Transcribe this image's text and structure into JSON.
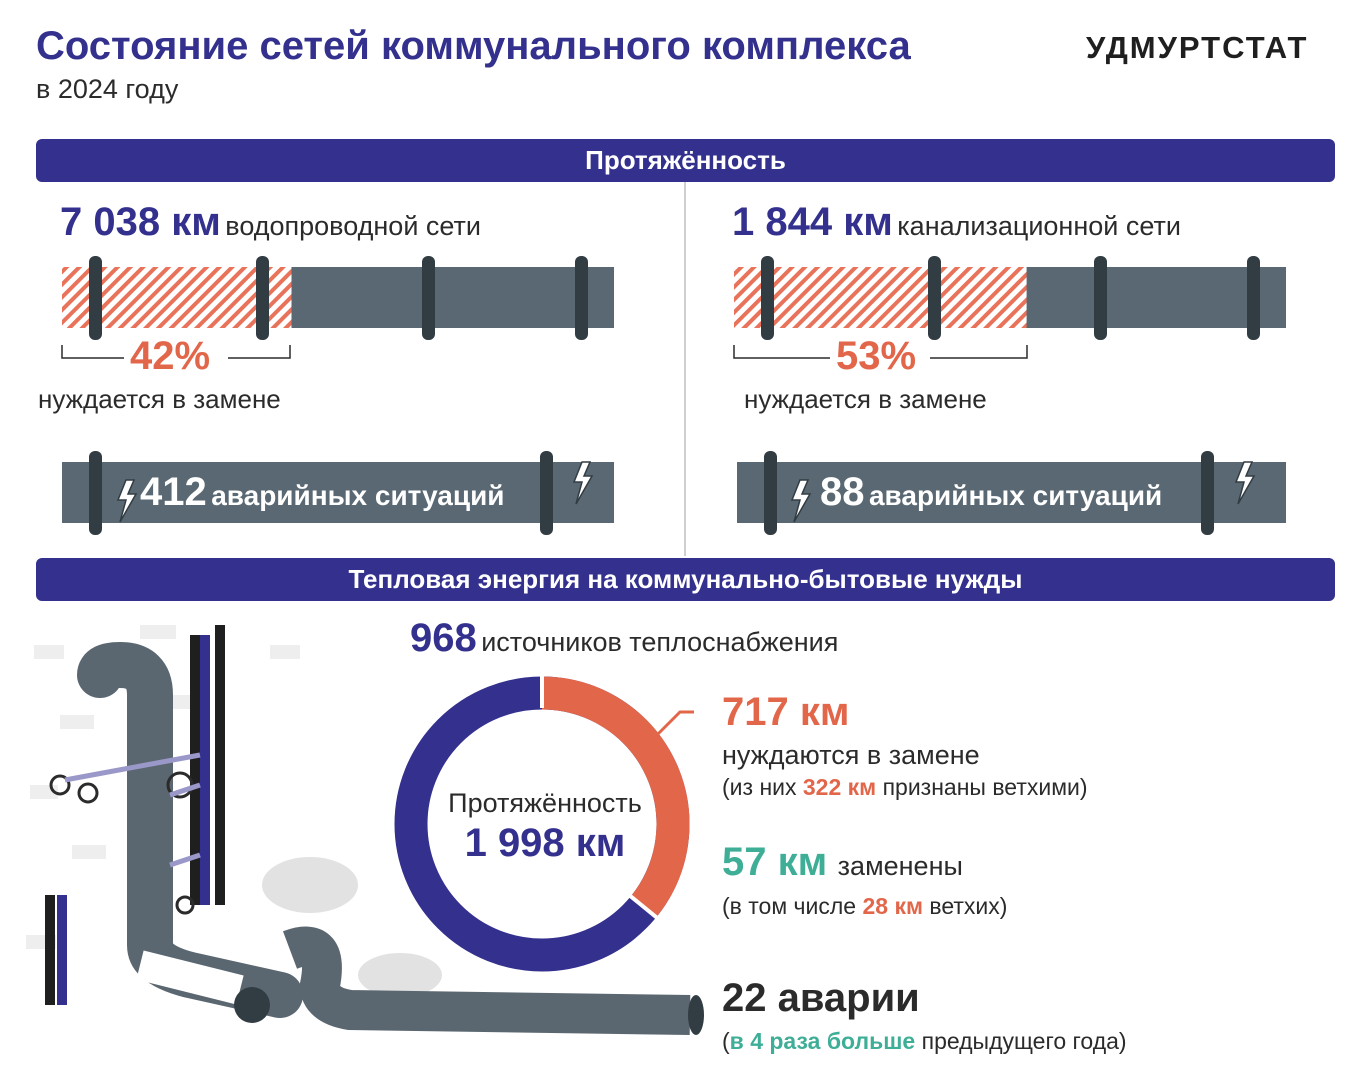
{
  "header": {
    "title": "Состояние сетей коммунального комплекса",
    "subtitle": "в 2024 году",
    "brand": "УДМУРТСТАТ"
  },
  "length_section": {
    "heading": "Протяжённость",
    "water": {
      "value": "7 038 км",
      "label": "водопроводной сети",
      "replace_percent": "42%",
      "replace_fraction": 0.42,
      "replace_label": "нуждается в замене",
      "accidents_value": "412",
      "accidents_label": "аварийных ситуаций"
    },
    "sewer": {
      "value": "1 844 км",
      "label": "канализационной сети",
      "replace_percent": "53%",
      "replace_fraction": 0.53,
      "replace_label": "нуждается в замене",
      "accidents_value": "88",
      "accidents_label": "аварийных ситуаций"
    }
  },
  "heat_section": {
    "heading": "Тепловая энергия на коммунально-бытовые нужды",
    "sources_value": "968",
    "sources_label": "источников теплоснабжения",
    "donut": {
      "center_label": "Протяжённость",
      "center_value": "1 998 км",
      "total_km": 1998,
      "need_replace_km": 717
    },
    "need_replace": {
      "value": "717 км",
      "label": "нуждаются в замене",
      "note_prefix": "(из них",
      "note_value": "322 км",
      "note_suffix": "признаны ветхими)"
    },
    "replaced": {
      "value": "57 км",
      "label": "заменены",
      "note_prefix": "(в том числе",
      "note_value": "28 км",
      "note_suffix": "ветхих)"
    },
    "accidents": {
      "value": "22 аварии",
      "note_open": "(",
      "note_highlight": "в 4 раза больше",
      "note_suffix": "предыдущего года)"
    }
  },
  "colors": {
    "navy": "#33308e",
    "orange": "#e2674a",
    "green": "#3fae97",
    "pipe": "#596872",
    "pipe_dark": "#323c43"
  }
}
